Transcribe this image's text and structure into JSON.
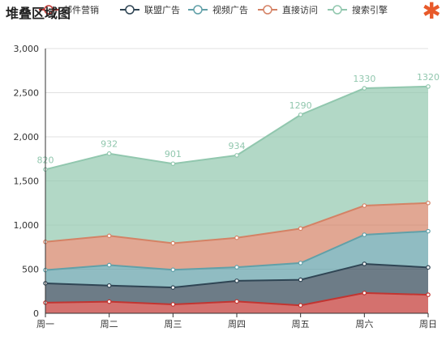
{
  "title": "堆叠区域图",
  "corner_icon": "asterisk-icon",
  "chart_data": {
    "type": "area",
    "stacked": true,
    "title": "堆叠区域图",
    "categories": [
      "周一",
      "周二",
      "周三",
      "周四",
      "周五",
      "周六",
      "周日"
    ],
    "ylim": [
      0,
      3000
    ],
    "yticks": [
      0,
      500,
      1000,
      1500,
      2000,
      2500,
      3000
    ],
    "ytick_labels": [
      "0",
      "500",
      "1,000",
      "1,500",
      "2,000",
      "2,500",
      "3,000"
    ],
    "grid": true,
    "legend_position": "top",
    "series": [
      {
        "name": "邮件营销",
        "color": "#c23531",
        "values": [
          120,
          132,
          101,
          134,
          90,
          230,
          210
        ]
      },
      {
        "name": "联盟广告",
        "color": "#2f4554",
        "values": [
          220,
          182,
          191,
          234,
          290,
          330,
          310
        ]
      },
      {
        "name": "视频广告",
        "color": "#61a0a8",
        "values": [
          150,
          232,
          201,
          154,
          190,
          330,
          410
        ]
      },
      {
        "name": "直接访问",
        "color": "#d48265",
        "values": [
          320,
          332,
          301,
          334,
          390,
          330,
          320
        ]
      },
      {
        "name": "搜索引擎",
        "color": "#91c7ae",
        "values": [
          820,
          932,
          901,
          934,
          1290,
          1330,
          1320
        ]
      }
    ],
    "data_labels_series": "搜索引擎"
  }
}
